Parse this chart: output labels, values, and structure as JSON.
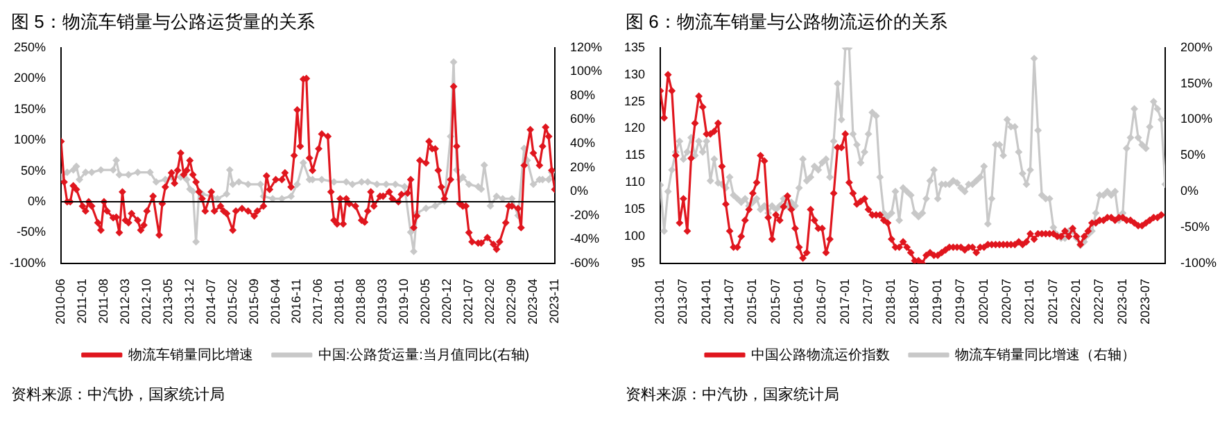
{
  "chart_data": [
    {
      "type": "line",
      "title": "图 5：物流车销量与公路运货量的关系",
      "marker": "diamond",
      "legend": "bottom",
      "grid": false,
      "xlim": [
        "2010-06",
        "2023-11"
      ],
      "xticks": [
        "2010-06",
        "2011-01",
        "2011-08",
        "2012-03",
        "2012-10",
        "2013-05",
        "2013-12",
        "2014-07",
        "2015-02",
        "2015-09",
        "2016-04",
        "2016-11",
        "2017-06",
        "2018-01",
        "2018-08",
        "2019-03",
        "2019-10",
        "2020-05",
        "2020-12",
        "2021-07",
        "2022-02",
        "2022-09",
        "2023-04",
        "2023-11"
      ],
      "ylim": [
        -100,
        250
      ],
      "yticks": [
        {
          "value": -100,
          "label": "-100%"
        },
        {
          "value": -50,
          "label": "-50%"
        },
        {
          "value": 0,
          "label": "0%"
        },
        {
          "value": 50,
          "label": "50%"
        },
        {
          "value": 100,
          "label": "100%"
        },
        {
          "value": 150,
          "label": "150%"
        },
        {
          "value": 200,
          "label": "200%"
        },
        {
          "value": 250,
          "label": "250%"
        }
      ],
      "y2lim": [
        -60,
        120
      ],
      "y2ticks": [
        {
          "value": -60,
          "label": "-60%"
        },
        {
          "value": -40,
          "label": "-40%"
        },
        {
          "value": -20,
          "label": "-20%"
        },
        {
          "value": 0,
          "label": "0%"
        },
        {
          "value": 20,
          "label": "20%"
        },
        {
          "value": 40,
          "label": "40%"
        },
        {
          "value": 60,
          "label": "60%"
        },
        {
          "value": 80,
          "label": "80%"
        },
        {
          "value": 100,
          "label": "100%"
        },
        {
          "value": 120,
          "label": "120%"
        }
      ],
      "ref_lines": [
        {
          "axis": "y",
          "value": 0,
          "color": "#000000"
        }
      ],
      "series": [
        {
          "name": "物流车销量同比增速",
          "color": "#e0161e",
          "x": [
            "2010-06",
            "2010-07",
            "2010-08",
            "2010-09",
            "2010-10",
            "2010-11",
            "2011-01",
            "2011-02",
            "2011-03",
            "2011-04",
            "2011-06",
            "2011-07",
            "2011-08",
            "2011-09",
            "2011-11",
            "2011-12",
            "2012-01",
            "2012-02",
            "2012-03",
            "2012-04",
            "2012-05",
            "2012-07",
            "2012-08",
            "2012-09",
            "2012-10",
            "2012-12",
            "2013-02",
            "2013-03",
            "2013-04",
            "2013-06",
            "2013-07",
            "2013-08",
            "2013-09",
            "2013-10",
            "2013-11",
            "2013-12",
            "2014-01",
            "2014-02",
            "2014-03",
            "2014-04",
            "2014-05",
            "2014-07",
            "2014-08",
            "2014-10",
            "2014-11",
            "2014-12",
            "2015-02",
            "2015-03",
            "2015-05",
            "2015-07",
            "2015-09",
            "2015-10",
            "2015-12",
            "2016-01",
            "2016-02",
            "2016-04",
            "2016-06",
            "2016-07",
            "2016-09",
            "2016-10",
            "2016-11",
            "2016-12",
            "2017-01",
            "2017-02",
            "2017-03",
            "2017-04",
            "2017-06",
            "2017-07",
            "2017-09",
            "2017-10",
            "2017-11",
            "2017-12",
            "2018-01",
            "2018-02",
            "2018-03",
            "2018-04",
            "2018-06",
            "2018-08",
            "2018-09",
            "2018-10",
            "2018-11",
            "2018-12",
            "2019-02",
            "2019-03",
            "2019-05",
            "2019-06",
            "2019-08",
            "2019-09",
            "2019-11",
            "2019-12",
            "2020-01",
            "2020-02",
            "2020-03",
            "2020-05",
            "2020-06",
            "2020-07",
            "2020-08",
            "2020-09",
            "2020-10",
            "2020-11",
            "2021-01",
            "2021-02",
            "2021-03",
            "2021-04",
            "2021-05",
            "2021-06",
            "2021-07",
            "2021-08",
            "2021-10",
            "2021-11",
            "2022-01",
            "2022-03",
            "2022-04",
            "2022-05",
            "2022-07",
            "2022-08",
            "2022-09",
            "2022-11",
            "2022-12",
            "2023-01",
            "2023-03",
            "2023-04",
            "2023-06",
            "2023-07",
            "2023-08",
            "2023-09",
            "2023-10",
            "2023-11"
          ],
          "values": [
            98,
            32,
            0,
            0,
            26,
            20,
            -7,
            -15,
            0,
            -7,
            -34,
            -46,
            0,
            -15,
            -26,
            -25,
            -50,
            16,
            -30,
            -34,
            -19,
            -30,
            -46,
            -38,
            -15,
            9,
            -54,
            -3,
            24,
            47,
            30,
            51,
            79,
            44,
            51,
            67,
            44,
            32,
            16,
            5,
            -15,
            16,
            -15,
            -7,
            -15,
            -19,
            -46,
            -15,
            -11,
            -15,
            -23,
            -15,
            -7,
            42,
            20,
            36,
            36,
            47,
            24,
            75,
            149,
            90,
            199,
            200,
            71,
            51,
            86,
            110,
            106,
            16,
            -30,
            -36,
            5,
            -36,
            5,
            -3,
            -7,
            -30,
            -33,
            -15,
            16,
            -7,
            9,
            9,
            16,
            5,
            0,
            12,
            14,
            36,
            -42,
            -23,
            67,
            63,
            98,
            86,
            86,
            51,
            24,
            5,
            36,
            187,
            90,
            -3,
            -7,
            -7,
            -50,
            -65,
            -67,
            -67,
            -58,
            -69,
            -77,
            -65,
            -34,
            -7,
            -7,
            -11,
            -42,
            59,
            117,
            79,
            59,
            90,
            121,
            106,
            51,
            20
          ]
        },
        {
          "name": "中国:公路货运量:当月值同比(右轴)",
          "color": "#c8c8c8",
          "axis": "y2",
          "x": [
            "2010-06",
            "2010-08",
            "2010-10",
            "2010-11",
            "2010-12",
            "2011-02",
            "2011-04",
            "2011-07",
            "2011-11",
            "2011-12",
            "2012-01",
            "2012-04",
            "2012-07",
            "2012-11",
            "2013-01",
            "2013-04",
            "2013-06",
            "2013-09",
            "2013-11",
            "2013-12",
            "2014-01",
            "2014-02",
            "2014-03",
            "2014-04",
            "2014-07",
            "2014-09",
            "2014-12",
            "2015-01",
            "2015-02",
            "2015-04",
            "2015-07",
            "2015-11",
            "2015-12",
            "2016-03",
            "2016-06",
            "2016-09",
            "2016-11",
            "2017-01",
            "2017-03",
            "2017-04",
            "2017-07",
            "2017-11",
            "2018-03",
            "2018-05",
            "2018-08",
            "2018-10",
            "2019-01",
            "2019-04",
            "2019-07",
            "2019-10",
            "2019-12",
            "2020-01",
            "2020-02",
            "2020-05",
            "2020-08",
            "2020-11",
            "2021-01",
            "2021-02",
            "2021-03",
            "2021-04",
            "2021-05",
            "2021-07",
            "2021-10",
            "2021-11",
            "2021-12",
            "2022-02",
            "2022-04",
            "2022-06",
            "2022-09",
            "2022-11",
            "2023-01",
            "2023-02",
            "2023-04",
            "2023-06",
            "2023-07",
            "2023-09",
            "2023-10",
            "2023-11"
          ],
          "values": [
            12,
            16,
            18,
            21,
            10,
            16,
            16,
            18,
            18,
            26,
            14,
            14,
            16,
            16,
            8,
            10,
            12,
            12,
            10,
            2,
            0,
            -42,
            0,
            -2,
            -4,
            -6,
            -2,
            18,
            6,
            8,
            6,
            6,
            -4,
            -6,
            -6,
            -4,
            6,
            24,
            10,
            10,
            10,
            8,
            8,
            6,
            8,
            8,
            6,
            6,
            6,
            4,
            -34,
            -50,
            -18,
            -14,
            -12,
            -8,
            46,
            108,
            18,
            10,
            12,
            6,
            4,
            2,
            22,
            -12,
            -4,
            -6,
            -6,
            -20,
            36,
            26,
            6,
            10,
            10,
            10,
            16,
            2
          ]
        }
      ],
      "annotations": [
        "资料来源：中汽协，国家统计局"
      ]
    },
    {
      "type": "line",
      "title": "图 6：物流车销量与公路物流运价的关系",
      "marker": "diamond",
      "legend": "bottom",
      "grid": false,
      "xlim": [
        "2013-01",
        "2023-12"
      ],
      "xticks": [
        "2013-01",
        "2013-07",
        "2014-01",
        "2014-07",
        "2015-01",
        "2015-07",
        "2016-01",
        "2016-07",
        "2017-01",
        "2017-07",
        "2018-01",
        "2018-07",
        "2019-01",
        "2019-07",
        "2020-01",
        "2020-07",
        "2021-01",
        "2021-07",
        "2022-01",
        "2022-07",
        "2023-01",
        "2023-07"
      ],
      "ylim": [
        95,
        135
      ],
      "yticks": [
        95,
        100,
        105,
        110,
        115,
        120,
        125,
        130,
        135
      ],
      "y2lim": [
        -100,
        200
      ],
      "y2ticks": [
        {
          "value": -100,
          "label": "-100%"
        },
        {
          "value": -50,
          "label": "-50%"
        },
        {
          "value": 0,
          "label": "0%"
        },
        {
          "value": 50,
          "label": "50%"
        },
        {
          "value": 100,
          "label": "100%"
        },
        {
          "value": 150,
          "label": "150%"
        },
        {
          "value": 200,
          "label": "200%"
        }
      ],
      "x": [
        "2013-01",
        "2013-02",
        "2013-03",
        "2013-04",
        "2013-05",
        "2013-06",
        "2013-07",
        "2013-08",
        "2013-09",
        "2013-10",
        "2013-11",
        "2013-12",
        "2014-01",
        "2014-02",
        "2014-03",
        "2014-04",
        "2014-05",
        "2014-06",
        "2014-07",
        "2014-08",
        "2014-09",
        "2014-10",
        "2014-11",
        "2014-12",
        "2015-01",
        "2015-02",
        "2015-03",
        "2015-04",
        "2015-05",
        "2015-06",
        "2015-07",
        "2015-08",
        "2015-09",
        "2015-10",
        "2015-11",
        "2015-12",
        "2016-01",
        "2016-02",
        "2016-03",
        "2016-04",
        "2016-05",
        "2016-06",
        "2016-07",
        "2016-08",
        "2016-09",
        "2016-10",
        "2016-11",
        "2016-12",
        "2017-01",
        "2017-02",
        "2017-03",
        "2017-04",
        "2017-05",
        "2017-06",
        "2017-07",
        "2017-08",
        "2017-09",
        "2017-10",
        "2017-11",
        "2017-12",
        "2018-01",
        "2018-02",
        "2018-03",
        "2018-04",
        "2018-05",
        "2018-06",
        "2018-07",
        "2018-08",
        "2018-09",
        "2018-10",
        "2018-11",
        "2018-12",
        "2019-01",
        "2019-02",
        "2019-03",
        "2019-04",
        "2019-05",
        "2019-06",
        "2019-07",
        "2019-08",
        "2019-09",
        "2019-10",
        "2019-11",
        "2019-12",
        "2020-01",
        "2020-02",
        "2020-03",
        "2020-04",
        "2020-05",
        "2020-06",
        "2020-07",
        "2020-08",
        "2020-09",
        "2020-10",
        "2020-11",
        "2020-12",
        "2021-01",
        "2021-02",
        "2021-03",
        "2021-04",
        "2021-05",
        "2021-06",
        "2021-07",
        "2021-08",
        "2021-09",
        "2021-10",
        "2021-11",
        "2021-12",
        "2022-01",
        "2022-02",
        "2022-03",
        "2022-04",
        "2022-05",
        "2022-06",
        "2022-07",
        "2022-08",
        "2022-09",
        "2022-10",
        "2022-11",
        "2022-12",
        "2023-01",
        "2023-02",
        "2023-03",
        "2023-04",
        "2023-05",
        "2023-06",
        "2023-07",
        "2023-08",
        "2023-09",
        "2023-10",
        "2023-11",
        "2023-12"
      ],
      "series": [
        {
          "name": "中国公路物流运价指数",
          "color": "#e0161e",
          "values": [
            127,
            122,
            130,
            127,
            115,
            102.5,
            107,
            101,
            114.5,
            121,
            126,
            124,
            119,
            119,
            119.5,
            121,
            113,
            106,
            101,
            98,
            98,
            100,
            103,
            105,
            108,
            110,
            115,
            114,
            103.5,
            99.5,
            104,
            103,
            105.5,
            107.5,
            105,
            101.5,
            98,
            96,
            97,
            105,
            103,
            101.5,
            101.5,
            97,
            99.5,
            108,
            116.5,
            116.5,
            119,
            110,
            108,
            106,
            106.5,
            107,
            105,
            104,
            104,
            104,
            103,
            102.5,
            99.5,
            98,
            98,
            99,
            98,
            97,
            95.5,
            95.5,
            95,
            96.5,
            97,
            96.5,
            96.5,
            97,
            97.5,
            98,
            98,
            98,
            98,
            97.5,
            98,
            98,
            97,
            98,
            98,
            98.5,
            98.5,
            98.5,
            98.5,
            98.5,
            98.5,
            98.5,
            98.5,
            99,
            98.5,
            99,
            100.5,
            99.5,
            100.5,
            100.5,
            100.5,
            100.5,
            100.5,
            100,
            100,
            101,
            100,
            101.5,
            100,
            98.5,
            100,
            101,
            102.5,
            102.5,
            103,
            103,
            103.5,
            103.5,
            103,
            103.5,
            103.5,
            103,
            103,
            102.5,
            102,
            102,
            102.5,
            103,
            103.5,
            103.5,
            104,
            null
          ]
        },
        {
          "name": "物流车销量同比增速（右轴）",
          "color": "#c8c8c8",
          "axis": "y2",
          "values": [
            9,
            -55,
            0,
            30,
            55,
            70,
            45,
            55,
            75,
            50,
            70,
            55,
            70,
            15,
            45,
            12,
            10,
            5,
            20,
            -5,
            -10,
            -15,
            -10,
            -20,
            -15,
            -10,
            -25,
            -20,
            -30,
            -20,
            -25,
            -20,
            -10,
            -20,
            -15,
            -20,
            5,
            45,
            15,
            20,
            35,
            30,
            40,
            45,
            20,
            70,
            150,
            100,
            200,
            200,
            80,
            65,
            40,
            55,
            80,
            110,
            105,
            20,
            -30,
            -35,
            -30,
            0,
            -40,
            5,
            0,
            -5,
            -30,
            -35,
            -30,
            -10,
            15,
            30,
            -10,
            10,
            10,
            10,
            15,
            12,
            5,
            0,
            10,
            10,
            15,
            20,
            35,
            -45,
            -10,
            65,
            65,
            50,
            100,
            90,
            90,
            55,
            25,
            10,
            30,
            185,
            85,
            -5,
            -10,
            -10,
            -50,
            -60,
            -65,
            -65,
            -55,
            -55,
            -65,
            -75,
            -70,
            -60,
            -55,
            -30,
            -5,
            -5,
            0,
            -5,
            0,
            -40,
            -30,
            60,
            75,
            115,
            75,
            65,
            60,
            90,
            125,
            115,
            100,
            10
          ]
        }
      ],
      "annotations": [
        "资料来源：中汽协，国家统计局"
      ]
    }
  ]
}
